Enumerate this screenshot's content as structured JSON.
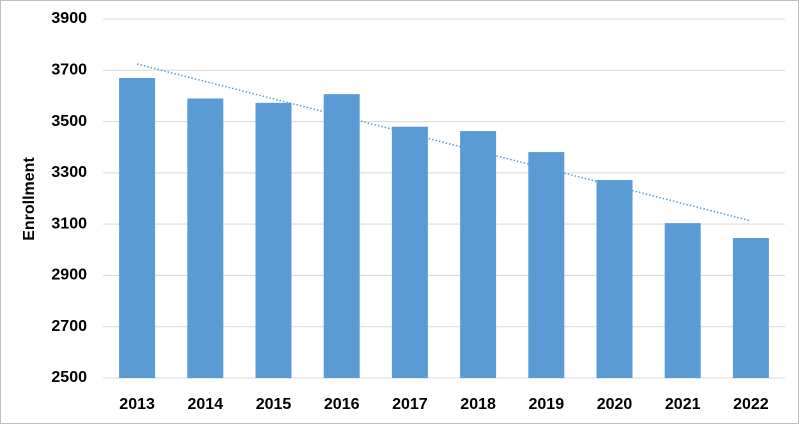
{
  "chart_data": {
    "type": "bar",
    "y_label": "Enrollment",
    "categories": [
      "2013",
      "2014",
      "2015",
      "2016",
      "2017",
      "2018",
      "2019",
      "2020",
      "2021",
      "2022"
    ],
    "values": [
      3670,
      3590,
      3573,
      3607,
      3480,
      3463,
      3381,
      3272,
      3104,
      3046
    ],
    "color": "#5b9bd5",
    "trendline": "linear",
    "trendline_color": "#5b9bd5",
    "ylim": [
      2500,
      3900
    ],
    "yticks": [
      2500,
      2700,
      2900,
      3100,
      3300,
      3500,
      3700,
      3900
    ],
    "grid": true
  }
}
